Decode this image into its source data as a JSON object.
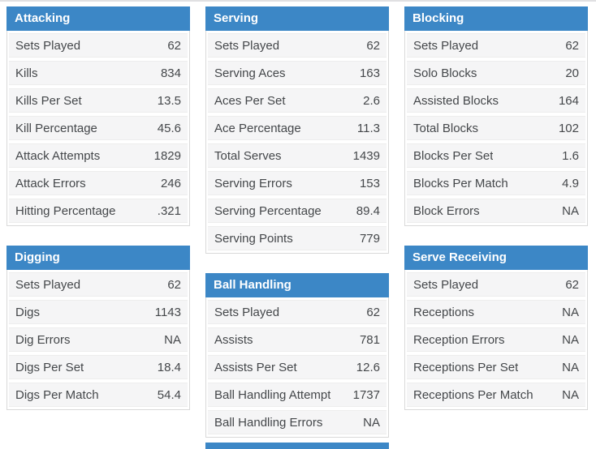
{
  "theme": {
    "header_bg": "#3c87c6",
    "header_text": "#ffffff",
    "row_bg": "#f5f5f6",
    "row_text": "#44474a",
    "table_border": "#d9d9d9",
    "row_line": "#ededed",
    "page_top_line": "#e0e0e2"
  },
  "tables": {
    "attacking": {
      "title": "Attacking",
      "rows": [
        {
          "label": "Sets Played",
          "value": "62"
        },
        {
          "label": "Kills",
          "value": "834"
        },
        {
          "label": "Kills Per Set",
          "value": "13.5"
        },
        {
          "label": "Kill Percentage",
          "value": "45.6"
        },
        {
          "label": "Attack Attempts",
          "value": "1829"
        },
        {
          "label": "Attack Errors",
          "value": "246"
        },
        {
          "label": "Hitting Percentage",
          "value": ".321"
        }
      ]
    },
    "serving": {
      "title": "Serving",
      "rows": [
        {
          "label": "Sets Played",
          "value": "62"
        },
        {
          "label": "Serving Aces",
          "value": "163"
        },
        {
          "label": "Aces Per Set",
          "value": "2.6"
        },
        {
          "label": "Ace Percentage",
          "value": "11.3"
        },
        {
          "label": "Total Serves",
          "value": "1439"
        },
        {
          "label": "Serving Errors",
          "value": "153"
        },
        {
          "label": "Serving Percentage",
          "value": "89.4"
        },
        {
          "label": "Serving Points",
          "value": "779"
        }
      ]
    },
    "blocking": {
      "title": "Blocking",
      "rows": [
        {
          "label": "Sets Played",
          "value": "62"
        },
        {
          "label": "Solo Blocks",
          "value": "20"
        },
        {
          "label": "Assisted Blocks",
          "value": "164"
        },
        {
          "label": "Total Blocks",
          "value": "102"
        },
        {
          "label": "Blocks Per Set",
          "value": "1.6"
        },
        {
          "label": "Blocks Per Match",
          "value": "4.9"
        },
        {
          "label": "Block Errors",
          "value": "NA"
        }
      ]
    },
    "digging": {
      "title": "Digging",
      "rows": [
        {
          "label": "Sets Played",
          "value": "62"
        },
        {
          "label": "Digs",
          "value": "1143"
        },
        {
          "label": "Dig Errors",
          "value": "NA"
        },
        {
          "label": "Digs Per Set",
          "value": "18.4"
        },
        {
          "label": "Digs Per Match",
          "value": "54.4"
        }
      ]
    },
    "ball_handling": {
      "title": "Ball Handling",
      "rows": [
        {
          "label": "Sets Played",
          "value": "62"
        },
        {
          "label": "Assists",
          "value": "781"
        },
        {
          "label": "Assists Per Set",
          "value": "12.6"
        },
        {
          "label": "Ball Handling Attempt",
          "value": "1737"
        },
        {
          "label": "Ball Handling Errors",
          "value": "NA"
        }
      ]
    },
    "serve_receiving": {
      "title": "Serve Receiving",
      "rows": [
        {
          "label": "Sets Played",
          "value": "62"
        },
        {
          "label": "Receptions",
          "value": "NA"
        },
        {
          "label": "Reception Errors",
          "value": "NA"
        },
        {
          "label": "Receptions Per Set",
          "value": "NA"
        },
        {
          "label": "Receptions Per Match",
          "value": "NA"
        }
      ]
    }
  }
}
